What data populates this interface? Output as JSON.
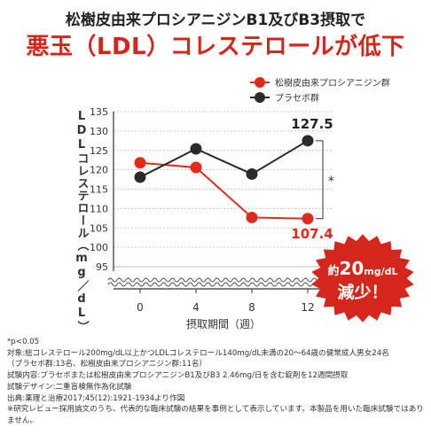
{
  "header": {
    "subtitle": "松樹皮由来プロシアニジンB1及びB3摂取で",
    "title": "悪玉（LDL）コレステロールが低下"
  },
  "chart_data": {
    "type": "line",
    "xlabel": "摂取期間（週）",
    "ylabel": "LDLコレステロール（mg／dL）",
    "x": [
      0,
      4,
      8,
      12
    ],
    "ylim": [
      95,
      135
    ],
    "yticks": [
      95,
      100,
      105,
      110,
      115,
      120,
      125,
      130,
      135
    ],
    "axis_break": true,
    "series": [
      {
        "name": "松樹皮由来プロシアニジン群",
        "color": "#e02a1b",
        "values": [
          121.8,
          120.6,
          107.7,
          107.4
        ]
      },
      {
        "name": "プラセボ群",
        "color": "#2b2b2b",
        "values": [
          118.1,
          125.4,
          118.9,
          127.5
        ]
      }
    ],
    "annotations": {
      "placebo_end": "127.5",
      "treated_end": "107.4",
      "significance": "*"
    },
    "legend_position": "top-right"
  },
  "badge": {
    "line1_prefix": "約",
    "line1_number": "20",
    "line1_unit": "mg/dL",
    "line2": "減少！",
    "color": "#d4261a"
  },
  "notes": [
    "*p<0.05",
    "対象:総コレステロール200mg/dL以上かつLDLコレステロール140mg/dL未満の20～64歳の健常成人男女24名",
    "（プラセボ群:13名、松樹皮由来プロシアニジン群:11名）",
    "試験内容:プラセボまたは松樹皮由来プロシアニジンB1及びB3 2.46mg/日を含む錠剤を12週間摂取",
    "試験デザイン:二重盲検無作為化試験",
    "出典:薬理と治療2017;45(12):1921-1934より作図",
    "※研究レビュー採用論文のうち、代表的な臨床試験の結果を事例として表示しています。本製品を用いた臨床試験ではありません。"
  ]
}
